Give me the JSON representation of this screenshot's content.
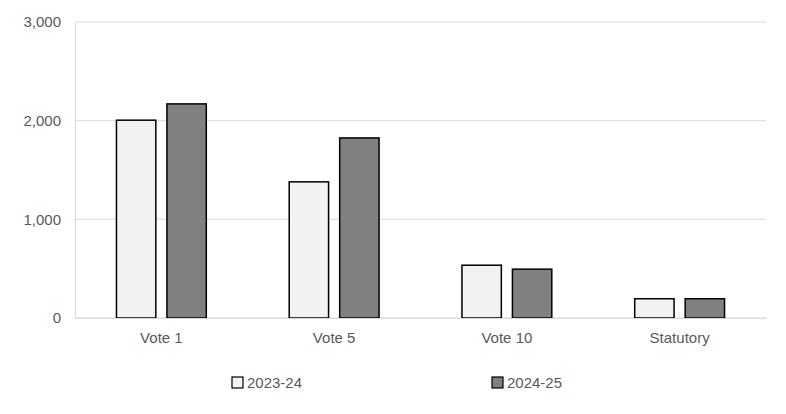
{
  "chart_data": {
    "type": "bar",
    "categories": [
      "Vote 1",
      "Vote 5",
      "Vote 10",
      "Statutory"
    ],
    "series": [
      {
        "name": "2023-24",
        "color": "#f2f2f2",
        "values": [
          2005,
          1380,
          535,
          195
        ]
      },
      {
        "name": "2024-25",
        "color": "#808080",
        "values": [
          2170,
          1825,
          495,
          195
        ]
      }
    ],
    "ylim": [
      0,
      3000
    ],
    "yticks": [
      0,
      {
        "value": 1000,
        "label": "1,000"
      },
      {
        "value": 2000,
        "label": "2,000"
      },
      {
        "value": 3000,
        "label": "3,000"
      }
    ],
    "grid": true,
    "legend": "bottom"
  }
}
